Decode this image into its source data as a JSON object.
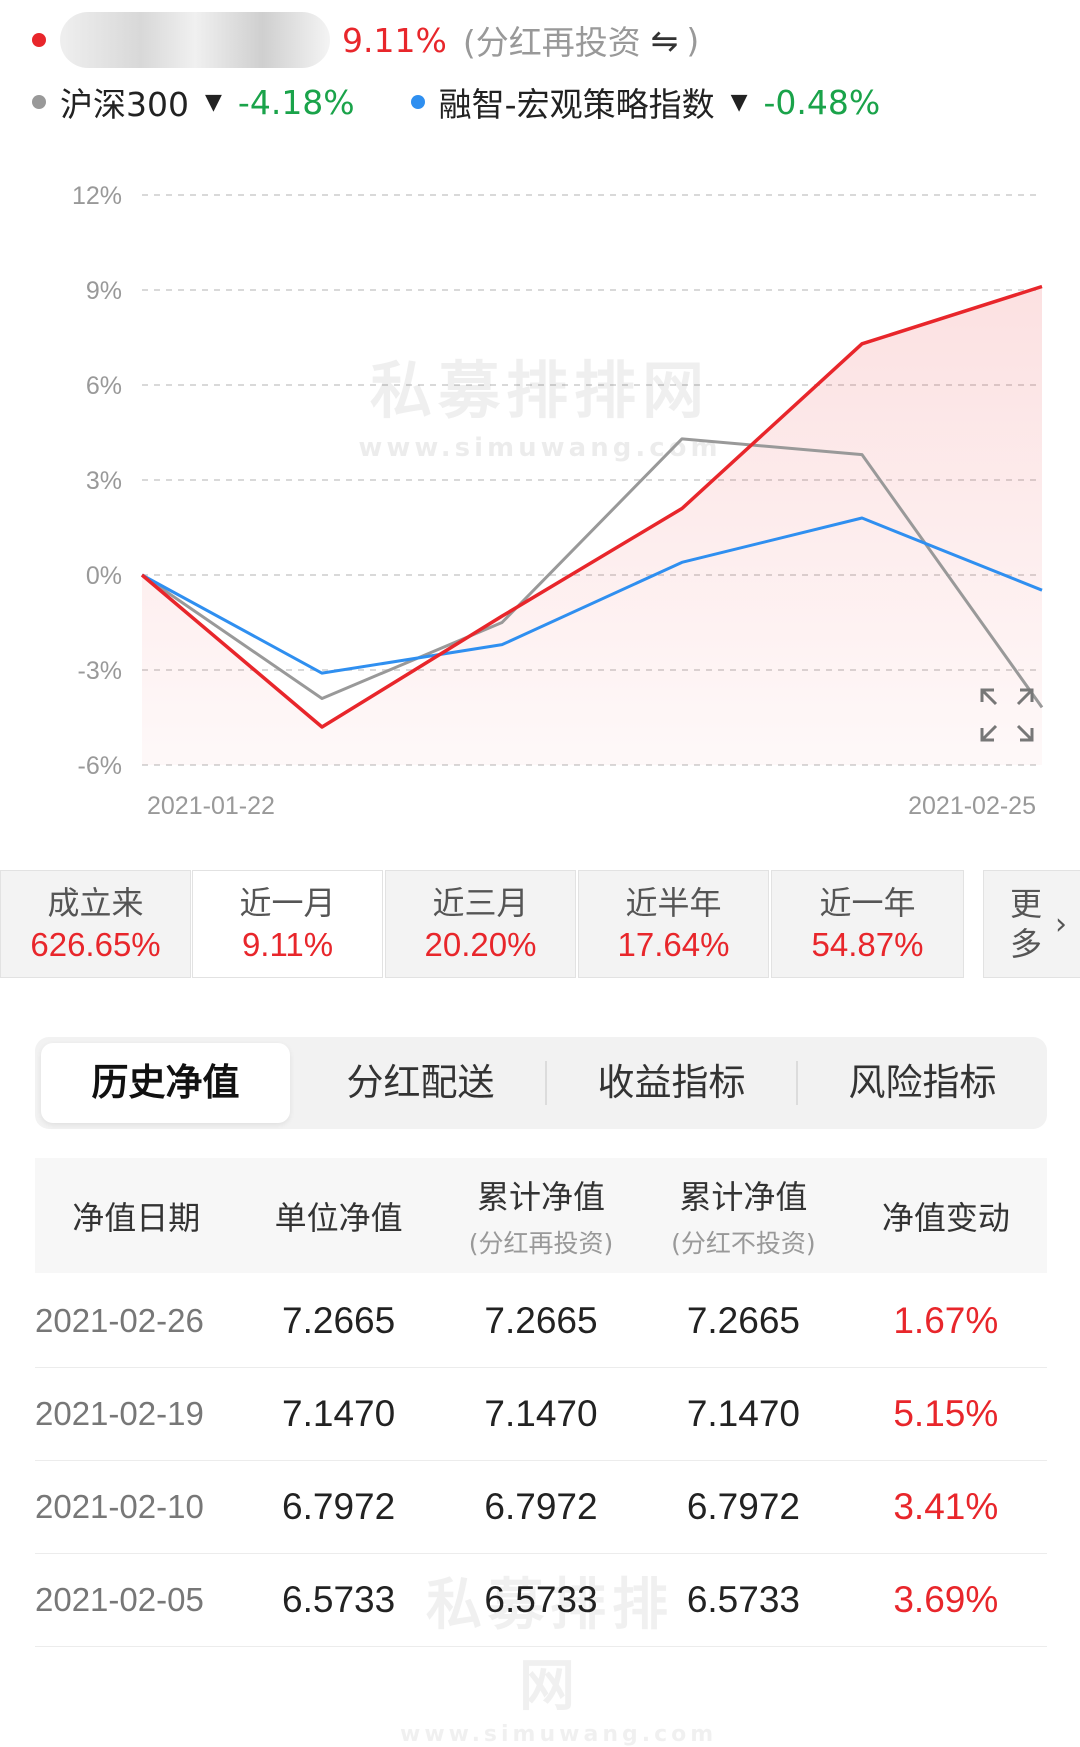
{
  "legend": {
    "fund": {
      "return": "9.11%",
      "mode": "(分红再投资",
      "swap_icon": "⇋",
      "close_paren": ")",
      "color": "#e8262b"
    },
    "benchmarks": [
      {
        "name": "沪深300",
        "return": "-4.18%",
        "color": "#999999"
      },
      {
        "name": "融智-宏观策略指数",
        "return": "-0.48%",
        "color": "#2f8ff0"
      }
    ]
  },
  "chart_data": {
    "type": "line",
    "x": [
      "2021-01-22",
      "",
      "",
      "",
      "",
      "2021-02-25"
    ],
    "x_tick_labels": [
      "2021-01-22",
      "2021-02-25"
    ],
    "ylim": [
      -6,
      12
    ],
    "y_ticks": [
      "12%",
      "9%",
      "6%",
      "3%",
      "0%",
      "-3%",
      "-6%"
    ],
    "grid": true,
    "series": [
      {
        "color": "#e8262b",
        "values": [
          0,
          -4.8,
          -1.3,
          2.1,
          7.3,
          9.11
        ],
        "area": true
      },
      {
        "color": "#999999",
        "values": [
          0,
          -3.9,
          -1.5,
          4.3,
          3.8,
          -4.18
        ]
      },
      {
        "color": "#2f8ff0",
        "values": [
          0,
          -3.1,
          -2.2,
          0.4,
          1.8,
          -0.48
        ]
      }
    ],
    "watermark": "私募排排网",
    "watermark_url": "www.simuwang.com"
  },
  "periods": [
    {
      "label": "成立来",
      "value": "626.65%"
    },
    {
      "label": "近一月",
      "value": "9.11%",
      "active": true
    },
    {
      "label": "近三月",
      "value": "20.20%"
    },
    {
      "label": "近半年",
      "value": "17.64%"
    },
    {
      "label": "近一年",
      "value": "54.87%"
    }
  ],
  "more_label": "更多",
  "tabs": [
    "历史净值",
    "分红配送",
    "收益指标",
    "风险指标"
  ],
  "table": {
    "headers": [
      {
        "main": "净值日期",
        "sub": ""
      },
      {
        "main": "单位净值",
        "sub": ""
      },
      {
        "main": "累计净值",
        "sub": "(分红再投资)"
      },
      {
        "main": "累计净值",
        "sub": "(分红不投资)"
      },
      {
        "main": "净值变动",
        "sub": ""
      }
    ],
    "rows": [
      {
        "date": "2021-02-26",
        "unit": "7.2665",
        "acc_re": "7.2665",
        "acc_no": "7.2665",
        "change": "1.67%"
      },
      {
        "date": "2021-02-19",
        "unit": "7.1470",
        "acc_re": "7.1470",
        "acc_no": "7.1470",
        "change": "5.15%"
      },
      {
        "date": "2021-02-10",
        "unit": "6.7972",
        "acc_re": "6.7972",
        "acc_no": "6.7972",
        "change": "3.41%"
      },
      {
        "date": "2021-02-05",
        "unit": "6.5733",
        "acc_re": "6.5733",
        "acc_no": "6.5733",
        "change": "3.69%"
      }
    ]
  }
}
